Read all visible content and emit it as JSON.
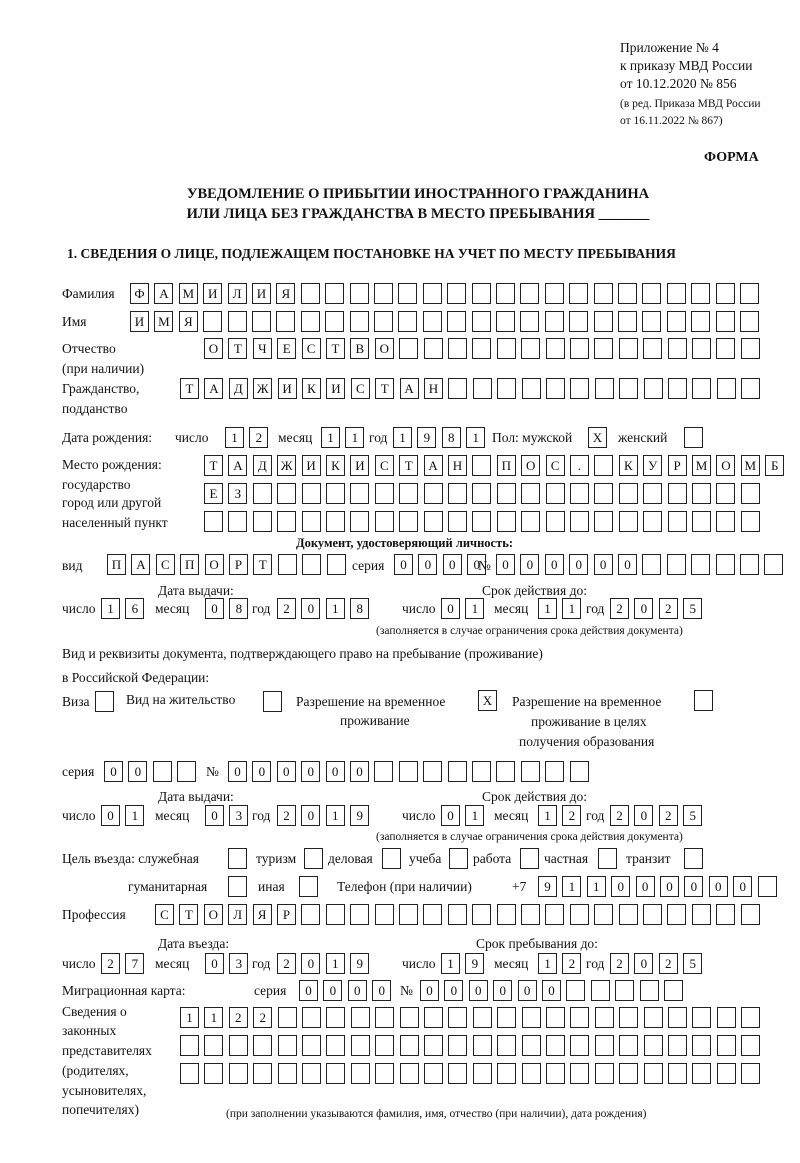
{
  "header": {
    "appendix": "Приложение № 4",
    "order": "к приказу МВД России",
    "order_date": "от 10.12.2020 № 856",
    "edition_1": "(в ред. Приказа МВД России",
    "edition_2": "от 16.11.2022 № 867)",
    "form_label": "ФОРМА",
    "title_1": "УВЕДОМЛЕНИЕ О ПРИБЫТИИ ИНОСТРАННОГО ГРАЖДАНИНА",
    "title_2": "ИЛИ ЛИЦА БЕЗ ГРАЖДАНСТВА В МЕСТО ПРЕБЫВАНИЯ _______",
    "section_1": "1. СВЕДЕНИЯ О ЛИЦЕ, ПОДЛЕЖАЩЕМ ПОСТАНОВКЕ НА УЧЕТ ПО МЕСТУ ПРЕБЫВАНИЯ"
  },
  "person": {
    "surname_label": "Фамилия",
    "surname": "ФАМИЛИЯ",
    "name_label": "Имя",
    "name": "ИМЯ",
    "patronymic_label_1": "Отчество",
    "patronymic_label_2": "(при наличии)",
    "patronymic": "ОТЧЕСТВО",
    "citizenship_label_1": "Гражданство,",
    "citizenship_label_2": "подданство",
    "citizenship": "ТАДЖИКИСТАН",
    "birth_label": "Дата рождения:",
    "day_label": "число",
    "month_label": "месяц",
    "year_label": "год",
    "birth_day": "12",
    "birth_month": "11",
    "birth_year": "1981",
    "sex_label": "Пол: мужской",
    "male": "X",
    "female_label": "женский",
    "female": "",
    "birthplace_label_1": "Место рождения:",
    "birthplace_label_2": "государство",
    "birthplace_label_3": "город или другой",
    "birthplace_label_4": "населенный пункт",
    "birthplace_line_1": "ТАДЖИКИСТАН ПОС. КУРМОМБ",
    "birthplace_line_2": "ЕЗ",
    "birthplace_line_3": ""
  },
  "identity_doc": {
    "heading": "Документ, удостоверяющий личность:",
    "kind_label": "вид",
    "kind": "ПАСПОРТ",
    "series_label": "серия",
    "series": "0000",
    "number_label": "№",
    "number": "000000",
    "issue_label": "Дата выдачи:",
    "issue_day": "16",
    "issue_month": "08",
    "issue_year": "2018",
    "valid_label": "Срок действия до:",
    "valid_day": "01",
    "valid_month": "11",
    "valid_year": "2025",
    "note": "(заполняется в случае ограничения срока действия документа)"
  },
  "stay_doc": {
    "label_1": "Вид и реквизиты документа, подтверждающего право на пребывание (проживание)",
    "label_2": "в Российской Федерации:",
    "visa_label": "Виза",
    "visa": "",
    "residence_label": "Вид на жительство",
    "residence": "",
    "temp_label_1": "Разрешение на временное",
    "temp_label_2": "проживание",
    "temp": "X",
    "edu_label_1": "Разрешение на временное",
    "edu_label_2": "проживание в целях",
    "edu_label_3": "получения образования",
    "edu": "",
    "series_label": "серия",
    "series": "00",
    "number_label": "№",
    "number": "000000",
    "issue_label": "Дата выдачи:",
    "issue_day": "01",
    "issue_month": "03",
    "issue_year": "2019",
    "valid_label": "Срок действия до:",
    "valid_day": "01",
    "valid_month": "12",
    "valid_year": "2025",
    "note": "(заполняется в случае ограничения срока действия документа)"
  },
  "purpose": {
    "label": "Цель въезда: служебная",
    "options": [
      {
        "label": "туризм",
        "value": ""
      },
      {
        "label": "деловая",
        "value": ""
      },
      {
        "label": "учеба",
        "value": ""
      },
      {
        "label": "работа",
        "value": ""
      },
      {
        "label": "частная",
        "value": "X"
      },
      {
        "label": "транзит",
        "value": ""
      },
      {
        "label": "гуманитарная",
        "value": ""
      },
      {
        "label": "иная",
        "value": ""
      }
    ],
    "official": "",
    "transit_box": "",
    "humanitarian": "",
    "other": ""
  },
  "contact": {
    "phone_label": "Телефон (при наличии)",
    "phone_prefix": "+7",
    "phone": "911000000",
    "profession_label": "Профессия",
    "profession": "СТОЛЯР"
  },
  "entry": {
    "entry_label": "Дата въезда:",
    "entry_day": "27",
    "entry_month": "03",
    "entry_year": "2019",
    "stay_label": "Срок пребывания до:",
    "stay_day": "19",
    "stay_month": "12",
    "stay_year": "2025",
    "card_label": "Миграционная карта:",
    "card_series_label": "серия",
    "card_series": "0000",
    "card_number_label": "№",
    "card_number": "000000"
  },
  "representatives": {
    "label_1": "Сведения о",
    "label_2": "законных",
    "label_3": "представителях",
    "label_4": "(родителях,",
    "label_5": "усыновителях,",
    "label_6": "попечителях)",
    "line_1": "1122",
    "line_2": "",
    "line_3": "",
    "note": "(при заполнении указываются фамилия, имя, отчество (при наличии), дата рождения)"
  }
}
